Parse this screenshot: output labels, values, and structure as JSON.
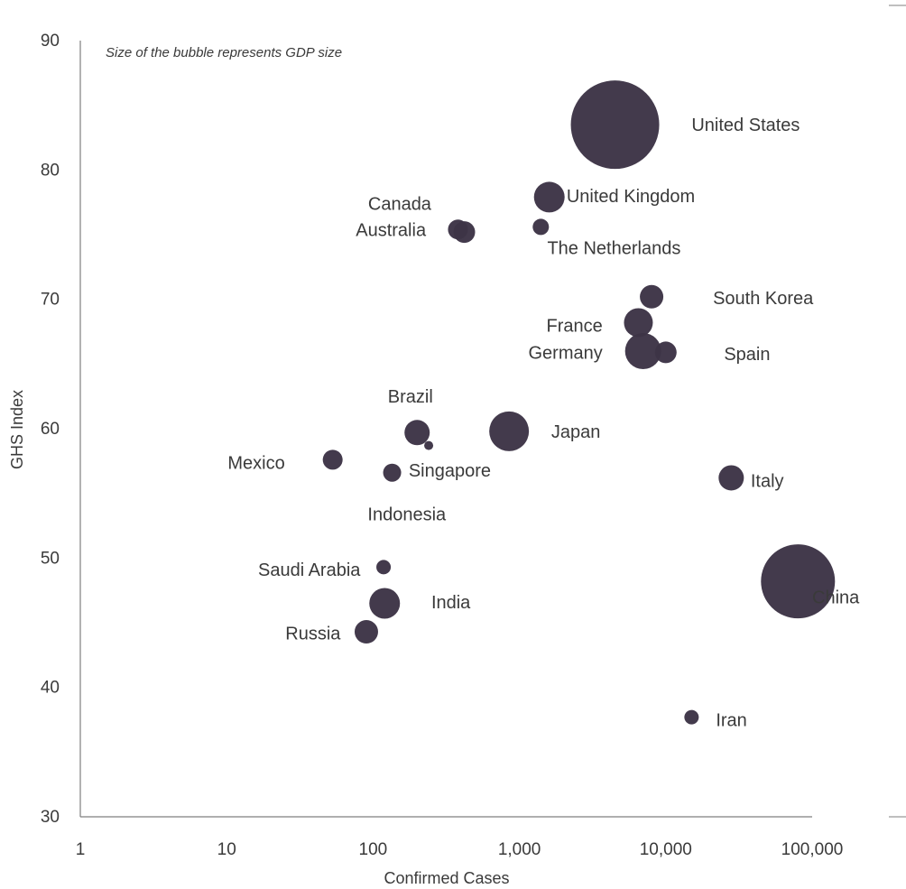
{
  "chart_data": {
    "type": "scatter",
    "subtype": "bubble",
    "title": "",
    "annotation": "Size of the bubble represents GDP size",
    "xlabel": "Confirmed Cases",
    "ylabel": "GHS Index",
    "x_scale": "log",
    "xlim": [
      1,
      100000
    ],
    "ylim": [
      30,
      90
    ],
    "x_ticks": [
      "1",
      "10",
      "100",
      "1,000",
      "10,000",
      "100,000"
    ],
    "y_ticks": [
      "30",
      "40",
      "50",
      "60",
      "70",
      "80",
      "90"
    ],
    "grid": false,
    "legend": "none",
    "bubble_color": "#3d3446",
    "size_note": "relative bubble radius (GDP size)",
    "points": [
      {
        "name": "United States",
        "x": 4500,
        "y": 83.5,
        "size": 49
      },
      {
        "name": "China",
        "x": 80000,
        "y": 48.2,
        "size": 41
      },
      {
        "name": "Japan",
        "x": 850,
        "y": 59.8,
        "size": 22
      },
      {
        "name": "Germany",
        "x": 7000,
        "y": 66.0,
        "size": 20
      },
      {
        "name": "United Kingdom",
        "x": 1600,
        "y": 77.9,
        "size": 17
      },
      {
        "name": "France",
        "x": 6500,
        "y": 68.2,
        "size": 16
      },
      {
        "name": "India",
        "x": 120,
        "y": 46.5,
        "size": 17
      },
      {
        "name": "Italy",
        "x": 28000,
        "y": 56.2,
        "size": 14
      },
      {
        "name": "Brazil",
        "x": 200,
        "y": 59.7,
        "size": 14
      },
      {
        "name": "Canada",
        "x": 380,
        "y": 75.4,
        "size": 11
      },
      {
        "name": "Australia",
        "x": 420,
        "y": 75.2,
        "size": 12
      },
      {
        "name": "South Korea",
        "x": 8000,
        "y": 70.2,
        "size": 13
      },
      {
        "name": "Spain",
        "x": 10000,
        "y": 65.9,
        "size": 12
      },
      {
        "name": "Russia",
        "x": 90,
        "y": 44.3,
        "size": 13
      },
      {
        "name": "Mexico",
        "x": 53,
        "y": 57.6,
        "size": 11
      },
      {
        "name": "Indonesia",
        "x": 135,
        "y": 56.6,
        "size": 10
      },
      {
        "name": "The Netherlands",
        "x": 1400,
        "y": 75.6,
        "size": 9
      },
      {
        "name": "Saudi Arabia",
        "x": 118,
        "y": 49.3,
        "size": 8
      },
      {
        "name": "Singapore",
        "x": 240,
        "y": 58.7,
        "size": 5
      },
      {
        "name": "Iran",
        "x": 15000,
        "y": 37.7,
        "size": 8
      }
    ],
    "labels": [
      {
        "text": "United States",
        "x": 15000,
        "y": 83.5,
        "anchor": "start"
      },
      {
        "text": "United Kingdom",
        "x": 2100,
        "y": 78.0,
        "anchor": "start"
      },
      {
        "text": "Canada",
        "x": 250,
        "y": 77.4,
        "anchor": "end"
      },
      {
        "text": "Australia",
        "x": 230,
        "y": 75.4,
        "anchor": "end"
      },
      {
        "text": "The Netherlands",
        "x": 1550,
        "y": 74.0,
        "anchor": "start"
      },
      {
        "text": "South Korea",
        "x": 21000,
        "y": 70.1,
        "anchor": "start"
      },
      {
        "text": "France",
        "x": 3700,
        "y": 68.0,
        "anchor": "end"
      },
      {
        "text": "Germany",
        "x": 3700,
        "y": 65.9,
        "anchor": "end"
      },
      {
        "text": "Spain",
        "x": 25000,
        "y": 65.8,
        "anchor": "start"
      },
      {
        "text": "Brazil",
        "x": 180,
        "y": 62.5,
        "anchor": "middle"
      },
      {
        "text": "Japan",
        "x": 1650,
        "y": 59.8,
        "anchor": "start"
      },
      {
        "text": "Mexico",
        "x": 25,
        "y": 57.4,
        "anchor": "end"
      },
      {
        "text": "Singapore",
        "x": 175,
        "y": 56.8,
        "anchor": "start"
      },
      {
        "text": "Indonesia",
        "x": 170,
        "y": 53.4,
        "anchor": "middle"
      },
      {
        "text": "Italy",
        "x": 38000,
        "y": 56.0,
        "anchor": "start"
      },
      {
        "text": "Saudi Arabia",
        "x": 82,
        "y": 49.1,
        "anchor": "end"
      },
      {
        "text": "India",
        "x": 250,
        "y": 46.6,
        "anchor": "start"
      },
      {
        "text": "China",
        "x": 100000,
        "y": 47.0,
        "anchor": "start"
      },
      {
        "text": "Russia",
        "x": 60,
        "y": 44.2,
        "anchor": "end"
      },
      {
        "text": "Iran",
        "x": 22000,
        "y": 37.5,
        "anchor": "start"
      }
    ]
  }
}
